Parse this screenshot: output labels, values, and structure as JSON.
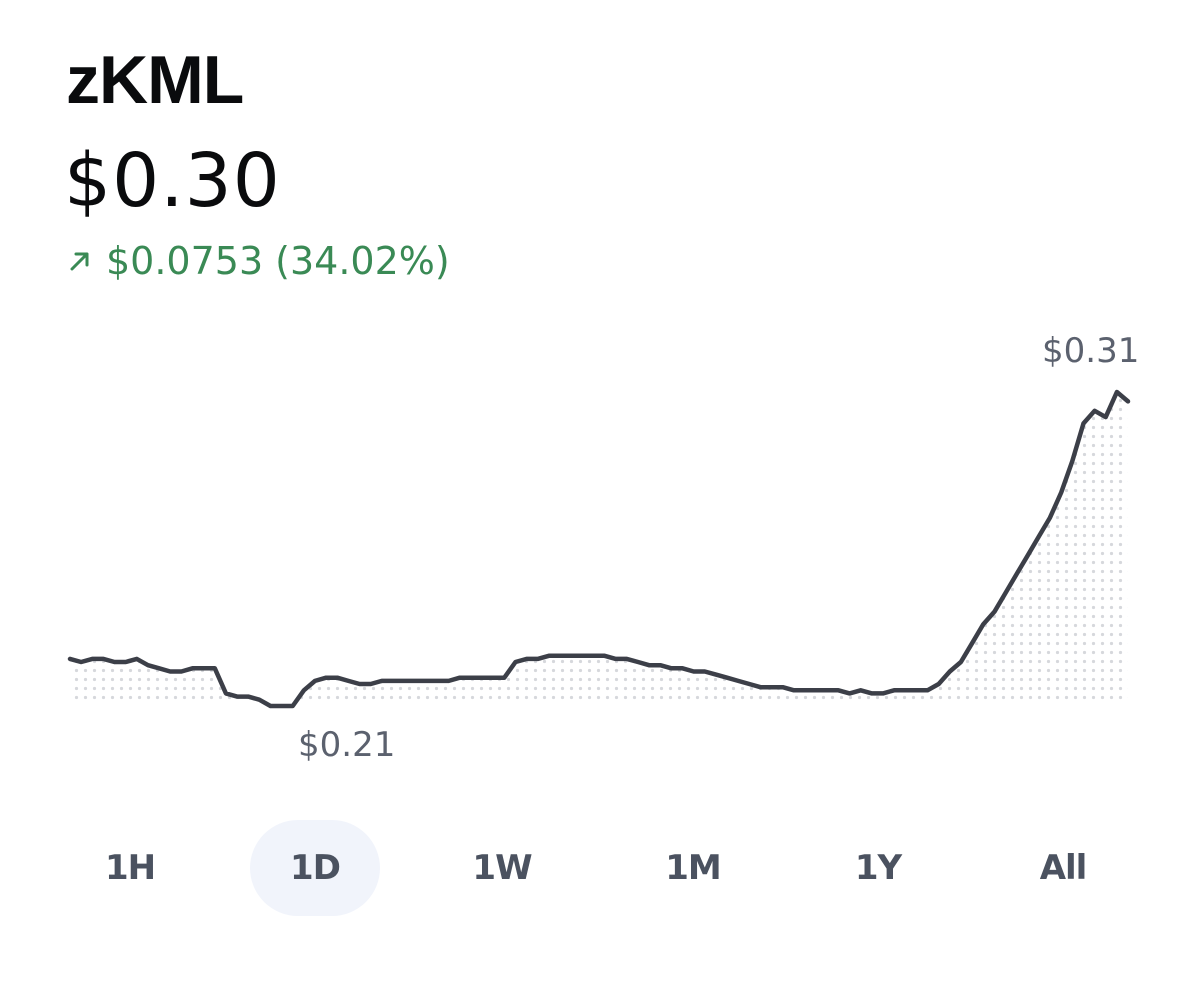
{
  "asset": {
    "name": "zKML",
    "price": "$0.30",
    "change_amount": "$0.0753",
    "change_percent": "(34.02%)",
    "change_direction_icon": "arrow-up-right-icon",
    "positive_color": "#3a8a55"
  },
  "chart": {
    "high_label": "$0.31",
    "low_label": "$0.21",
    "line_color": "#3c3f48"
  },
  "chart_data": {
    "type": "line",
    "title": "",
    "xlabel": "",
    "ylabel": "",
    "grid": false,
    "x": [
      0,
      1,
      2,
      3,
      4,
      5,
      6,
      7,
      8,
      9,
      10,
      11,
      12,
      13,
      14,
      15,
      16,
      17,
      18,
      19,
      20,
      21,
      22,
      23,
      24,
      25,
      26,
      27,
      28,
      29,
      30,
      31,
      32,
      33,
      34,
      35,
      36,
      37,
      38,
      39,
      40,
      41,
      42,
      43,
      44,
      45,
      46,
      47,
      48,
      49,
      50,
      51,
      52,
      53,
      54,
      55,
      56,
      57,
      58,
      59,
      60,
      61,
      62,
      63,
      64,
      65,
      66,
      67,
      68,
      69,
      70,
      71,
      72,
      73,
      74,
      75,
      76,
      77,
      78,
      79,
      80,
      81,
      82,
      83,
      84,
      85,
      86,
      87,
      88,
      89,
      90,
      91,
      92,
      93,
      94,
      95
    ],
    "ylim": [
      0.205,
      0.315
    ],
    "series": [
      {
        "values": [
          0.225,
          0.224,
          0.225,
          0.225,
          0.224,
          0.224,
          0.225,
          0.223,
          0.222,
          0.221,
          0.221,
          0.222,
          0.222,
          0.222,
          0.214,
          0.213,
          0.213,
          0.212,
          0.21,
          0.21,
          0.21,
          0.215,
          0.218,
          0.219,
          0.219,
          0.218,
          0.217,
          0.217,
          0.218,
          0.218,
          0.218,
          0.218,
          0.218,
          0.218,
          0.218,
          0.219,
          0.219,
          0.219,
          0.219,
          0.219,
          0.224,
          0.225,
          0.225,
          0.226,
          0.226,
          0.226,
          0.226,
          0.226,
          0.226,
          0.225,
          0.225,
          0.224,
          0.223,
          0.223,
          0.222,
          0.222,
          0.221,
          0.221,
          0.22,
          0.219,
          0.218,
          0.217,
          0.216,
          0.216,
          0.216,
          0.215,
          0.215,
          0.215,
          0.215,
          0.215,
          0.214,
          0.215,
          0.214,
          0.214,
          0.215,
          0.215,
          0.215,
          0.215,
          0.217,
          0.221,
          0.224,
          0.23,
          0.236,
          0.24,
          0.246,
          0.252,
          0.258,
          0.264,
          0.27,
          0.278,
          0.288,
          0.3,
          0.304,
          0.302,
          0.31,
          0.307
        ]
      }
    ],
    "annotations": [
      "$0.31",
      "$0.21"
    ]
  },
  "ranges": {
    "tabs": [
      "1H",
      "1D",
      "1W",
      "1M",
      "1Y",
      "All"
    ],
    "selected": "1D",
    "selected_bg": "#f1f4fb"
  }
}
